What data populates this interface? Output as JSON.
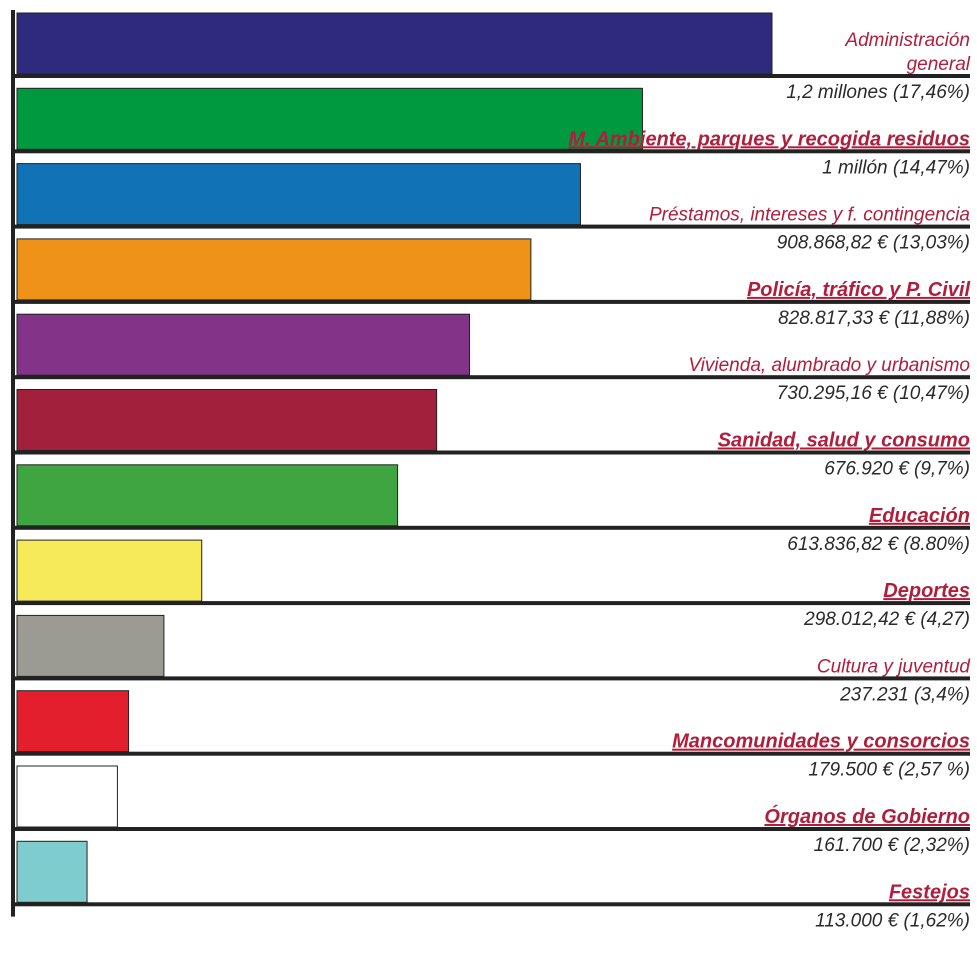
{
  "chart_data": {
    "type": "bar",
    "orientation": "horizontal",
    "grid": false,
    "legend": "none",
    "xlim": [
      0,
      1.45
    ],
    "categories": [
      "Administración general",
      "M. Ambiente, parques y recogida residuos",
      "Préstamos, intereses y f. contingencia",
      "Policía, tráfico y P. Civil",
      "Vivienda, alumbrado y urbanismo",
      "Sanidad, salud y consumo",
      "Educación",
      "Deportes",
      "Cultura y juventud",
      "Mancomunidades y consorcios",
      "Órganos de Gobierno",
      "Festejos"
    ],
    "values": [
      1.218,
      1.009,
      0.909,
      0.829,
      0.73,
      0.677,
      0.614,
      0.298,
      0.237,
      0.18,
      0.162,
      0.113
    ],
    "value_unit": "millones €",
    "items": [
      {
        "label_lines": [
          "Administración",
          "general"
        ],
        "value_label": "1,2 millones (17,46%)",
        "color": "#2e2a7d",
        "bold": false
      },
      {
        "label_lines": [
          "M. Ambiente, parques y recogida residuos"
        ],
        "value_label": "1 millón (14,47%)",
        "color": "#00993f",
        "bold": true
      },
      {
        "label_lines": [
          "Préstamos, intereses y f. contingencia"
        ],
        "value_label": "908.868,82 € (13,03%)",
        "color": "#1173b5",
        "bold": false
      },
      {
        "label_lines": [
          "Policía, tráfico y P. Civil"
        ],
        "value_label": "828.817,33 € (11,88%)",
        "color": "#ef9218",
        "bold": true
      },
      {
        "label_lines": [
          "Vivienda, alumbrado y urbanismo"
        ],
        "value_label": "730.295,16 € (10,47%)",
        "color": "#833388",
        "bold": false
      },
      {
        "label_lines": [
          "Sanidad, salud y consumo"
        ],
        "value_label": "676.920 € (9,7%)",
        "color": "#a3203d",
        "bold": true
      },
      {
        "label_lines": [
          "Educación"
        ],
        "value_label": "613.836,82 € (8.80%)",
        "color": "#3fa540",
        "bold": true
      },
      {
        "label_lines": [
          "Deportes"
        ],
        "value_label": "298.012,42 € (4,27)",
        "color": "#f6ea5b",
        "bold": true
      },
      {
        "label_lines": [
          "Cultura y juventud"
        ],
        "value_label": "237.231 (3,4%)",
        "color": "#9b9b94",
        "bold": false
      },
      {
        "label_lines": [
          "Mancomunidades y consorcios"
        ],
        "value_label": "179.500 € (2,57 %)",
        "color": "#e41f2d",
        "bold": true
      },
      {
        "label_lines": [
          "Órganos de Gobierno"
        ],
        "value_label": "161.700 € (2,32%)",
        "color": "#ffffff",
        "bold": true
      },
      {
        "label_lines": [
          "Festejos"
        ],
        "value_label": "113.000 € (1,62%)",
        "color": "#7ecccd",
        "bold": true
      }
    ]
  }
}
